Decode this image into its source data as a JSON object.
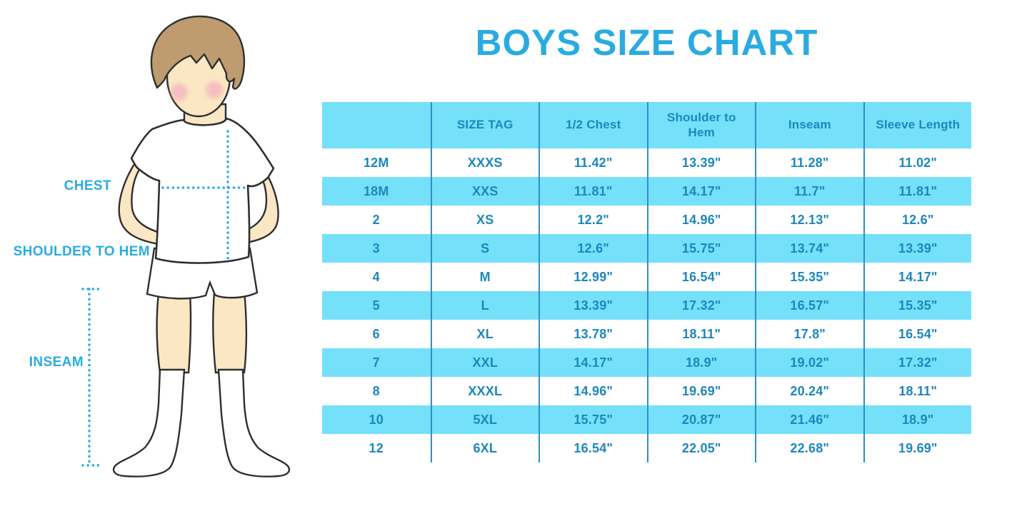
{
  "title": "BOYS SIZE CHART",
  "colors": {
    "accent": "#29ABE2",
    "row_band": "#75E0F9",
    "column_divider": "#2F8FC5",
    "table_text": "#1D87BD",
    "skin": "#FBE7C3",
    "hair": "#BE9C70",
    "outline": "#2F2F2F",
    "blush": "#F1A9BD"
  },
  "figure": {
    "description": "cartoon boy in white t-shirt, shorts and socks with dotted measurement guides",
    "labels": {
      "chest": "CHEST",
      "shoulder_to_hem": "SHOULDER TO HEM",
      "inseam": "INSEAM"
    }
  },
  "chart_data": {
    "type": "table",
    "title": "BOYS SIZE CHART",
    "columns": [
      "",
      "SIZE TAG",
      "1/2 Chest",
      "Shoulder to Hem",
      "Inseam",
      "Sleeve Length"
    ],
    "rows": [
      [
        "12M",
        "XXXS",
        "11.42\"",
        "13.39\"",
        "11.28\"",
        "11.02\""
      ],
      [
        "18M",
        "XXS",
        "11.81\"",
        "14.17\"",
        "11.7\"",
        "11.81\""
      ],
      [
        "2",
        "XS",
        "12.2\"",
        "14.96\"",
        "12.13\"",
        "12.6\""
      ],
      [
        "3",
        "S",
        "12.6\"",
        "15.75\"",
        "13.74\"",
        "13.39\""
      ],
      [
        "4",
        "M",
        "12.99\"",
        "16.54\"",
        "15.35\"",
        "14.17\""
      ],
      [
        "5",
        "L",
        "13.39\"",
        "17.32\"",
        "16.57\"",
        "15.35\""
      ],
      [
        "6",
        "XL",
        "13.78\"",
        "18.11\"",
        "17.8\"",
        "16.54\""
      ],
      [
        "7",
        "XXL",
        "14.17\"",
        "18.9\"",
        "19.02\"",
        "17.32\""
      ],
      [
        "8",
        "XXXL",
        "14.96\"",
        "19.69\"",
        "20.24\"",
        "18.11\""
      ],
      [
        "10",
        "5XL",
        "15.75\"",
        "20.87\"",
        "21.46\"",
        "18.9\""
      ],
      [
        "12",
        "6XL",
        "16.54\"",
        "22.05\"",
        "22.68\"",
        "19.69\""
      ]
    ],
    "layout": {
      "header_fill": "band",
      "row_striping": "white/band alternating starting white",
      "borders": "vertical column dividers only, no outer border"
    }
  }
}
